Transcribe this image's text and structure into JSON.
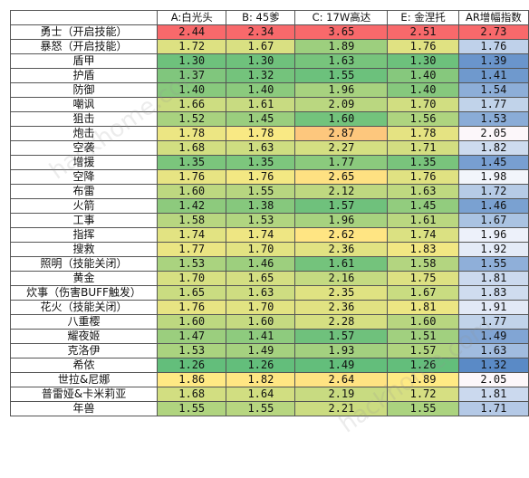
{
  "columns": [
    "",
    "A:白光头",
    "B: 45爹",
    "C: 17W高达",
    "E: 金涅托",
    "AR增幅指数"
  ],
  "rows": [
    {
      "name": "勇士（开启技能）",
      "values": [
        "2.44",
        "2.34",
        "3.65",
        "2.51",
        "2.73"
      ]
    },
    {
      "name": "暴怒（开启技能）",
      "values": [
        "1.72",
        "1.67",
        "1.89",
        "1.76",
        "1.76"
      ]
    },
    {
      "name": "盾甲",
      "values": [
        "1.30",
        "1.30",
        "1.63",
        "1.30",
        "1.39"
      ]
    },
    {
      "name": "护盾",
      "values": [
        "1.37",
        "1.32",
        "1.55",
        "1.40",
        "1.41"
      ]
    },
    {
      "name": "防御",
      "values": [
        "1.40",
        "1.40",
        "1.96",
        "1.40",
        "1.54"
      ]
    },
    {
      "name": "嘲讽",
      "values": [
        "1.66",
        "1.61",
        "2.09",
        "1.70",
        "1.77"
      ]
    },
    {
      "name": "狙击",
      "values": [
        "1.52",
        "1.45",
        "1.60",
        "1.56",
        "1.53"
      ]
    },
    {
      "name": "炮击",
      "values": [
        "1.78",
        "1.78",
        "2.87",
        "1.78",
        "2.05"
      ]
    },
    {
      "name": "空袭",
      "values": [
        "1.68",
        "1.63",
        "2.27",
        "1.71",
        "1.82"
      ]
    },
    {
      "name": "增援",
      "values": [
        "1.35",
        "1.35",
        "1.77",
        "1.35",
        "1.45"
      ]
    },
    {
      "name": "空降",
      "values": [
        "1.76",
        "1.76",
        "2.65",
        "1.76",
        "1.98"
      ]
    },
    {
      "name": "布雷",
      "values": [
        "1.60",
        "1.55",
        "2.12",
        "1.63",
        "1.72"
      ]
    },
    {
      "name": "火箭",
      "values": [
        "1.42",
        "1.38",
        "1.57",
        "1.45",
        "1.46"
      ]
    },
    {
      "name": "工事",
      "values": [
        "1.58",
        "1.53",
        "1.96",
        "1.61",
        "1.67"
      ]
    },
    {
      "name": "指挥",
      "values": [
        "1.74",
        "1.74",
        "2.62",
        "1.74",
        "1.96"
      ]
    },
    {
      "name": "搜救",
      "values": [
        "1.77",
        "1.70",
        "2.36",
        "1.83",
        "1.92"
      ]
    },
    {
      "name": "照明（技能关闭）",
      "values": [
        "1.53",
        "1.46",
        "1.61",
        "1.58",
        "1.55"
      ]
    },
    {
      "name": "黄金",
      "values": [
        "1.70",
        "1.65",
        "2.16",
        "1.75",
        "1.81"
      ]
    },
    {
      "name": "炊事（伤害BUFF触发）",
      "values": [
        "1.65",
        "1.63",
        "2.35",
        "1.67",
        "1.83"
      ]
    },
    {
      "name": "花火（技能关闭）",
      "values": [
        "1.76",
        "1.70",
        "2.36",
        "1.81",
        "1.91"
      ]
    },
    {
      "name": "八重樱",
      "values": [
        "1.60",
        "1.60",
        "2.28",
        "1.60",
        "1.77"
      ]
    },
    {
      "name": "耀夜姬",
      "values": [
        "1.47",
        "1.41",
        "1.57",
        "1.51",
        "1.49"
      ]
    },
    {
      "name": "克洛伊",
      "values": [
        "1.53",
        "1.49",
        "1.93",
        "1.57",
        "1.63"
      ]
    },
    {
      "name": "希侬",
      "values": [
        "1.26",
        "1.26",
        "1.49",
        "1.26",
        "1.32"
      ]
    },
    {
      "name": "世拉&尼娜",
      "values": [
        "1.86",
        "1.82",
        "2.64",
        "1.89",
        "2.05"
      ]
    },
    {
      "name": "普雷娅&卡米莉亚",
      "values": [
        "1.68",
        "1.64",
        "2.19",
        "1.72",
        "1.81"
      ]
    },
    {
      "name": "年兽",
      "values": [
        "1.55",
        "1.55",
        "2.21",
        "1.55",
        "1.71"
      ]
    }
  ],
  "colors": {
    "scale_low": "#63be7b",
    "scale_mid": "#ffeb84",
    "scale_high": "#f8696b",
    "ar_low": "#5a8ac6",
    "ar_mid": "#fcfcff",
    "ar_high": "#f8696b"
  }
}
